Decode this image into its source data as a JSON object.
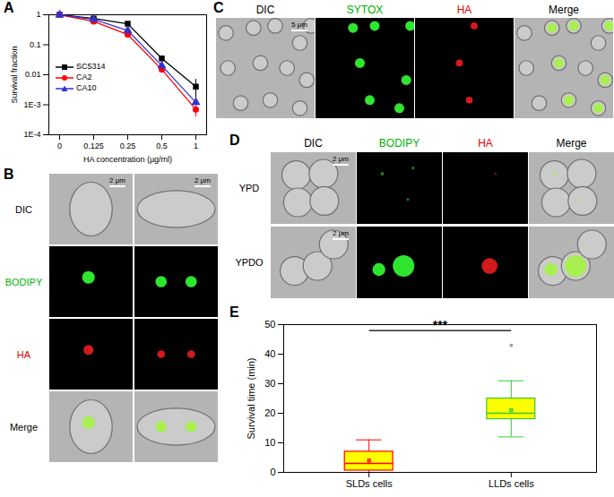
{
  "chart_data": [
    {
      "panel": "A",
      "type": "line",
      "xlabel": "HA concentration (μg/ml)",
      "ylabel": "Survival fraction",
      "categories": [
        "0",
        "0.125",
        "0.25",
        "0.5",
        "1"
      ],
      "series": [
        {
          "name": "SC5314",
          "color": "#000000",
          "marker": "square",
          "values": [
            1,
            0.75,
            0.5,
            0.035,
            0.004
          ],
          "errors": [
            0,
            0,
            0,
            0,
            0.003
          ]
        },
        {
          "name": "CA2",
          "color": "#ff0000",
          "marker": "circle",
          "values": [
            1,
            0.6,
            0.22,
            0.015,
            0.0007
          ],
          "errors": [
            0,
            0,
            0,
            0,
            0.0003
          ]
        },
        {
          "name": "CA10",
          "color": "#3333cc",
          "marker": "triangle",
          "values": [
            1,
            0.7,
            0.3,
            0.02,
            0.0012
          ],
          "errors": [
            0,
            0,
            0,
            0,
            0.0004
          ]
        }
      ],
      "log": "y",
      "ylim": [
        0.0001,
        1
      ],
      "yticks": [
        1,
        0.1,
        0.01,
        {
          "value": 0.001,
          "label": "1E-3"
        },
        {
          "value": 0.0001,
          "label": "1E-4"
        }
      ],
      "legend": "left",
      "grid": false
    },
    {
      "panel": "E",
      "type": "box",
      "ylabel": "Survival time (min)",
      "categories": [
        "SLDs cells",
        "LLDs cells"
      ],
      "min": [
        0,
        12
      ],
      "q1": [
        0.6,
        18
      ],
      "median": [
        3,
        20
      ],
      "q3": [
        7,
        25
      ],
      "max": [
        11,
        31
      ],
      "mean": [
        4,
        21
      ],
      "outliers": [
        [],
        [
          43
        ]
      ],
      "color": "#ffff00",
      "colors": [
        "#ff0000",
        "#33cc33"
      ],
      "ylim": [
        0,
        50
      ],
      "yticks": [
        0,
        10,
        20,
        30,
        40,
        50
      ],
      "annotations": [
        {
          "text": "***",
          "from": "SLDs cells",
          "to": "LLDs cells",
          "y": 48
        }
      ]
    }
  ],
  "panels": [
    {
      "label": "B",
      "row_labels": [
        {
          "text": "DIC",
          "color": "#000000"
        },
        {
          "text": "BODIPY",
          "color": "#00b000"
        },
        {
          "text": "HA",
          "color": "#e00000"
        },
        {
          "text": "Merge",
          "color": "#000000"
        }
      ],
      "scale_bars": [
        "2 μm",
        "2 μm"
      ]
    },
    {
      "label": "C",
      "column_labels": [
        {
          "text": "DIC",
          "color": "#000000"
        },
        {
          "text": "SYTOX",
          "color": "#00b000"
        },
        {
          "text": "HA",
          "color": "#e00000"
        },
        {
          "text": "Merge",
          "color": "#000000"
        }
      ],
      "scale_bars": [
        "5 μm"
      ]
    },
    {
      "label": "D",
      "column_labels": [
        {
          "text": "DIC",
          "color": "#000000"
        },
        {
          "text": "BODIPY",
          "color": "#00b000"
        },
        {
          "text": "HA",
          "color": "#e00000"
        },
        {
          "text": "Merge",
          "color": "#000000"
        }
      ],
      "row_labels": [
        {
          "text": "YPD",
          "color": "#000000"
        },
        {
          "text": "YPDO",
          "color": "#000000"
        }
      ],
      "scale_bars": [
        "2 μm",
        "2 μm"
      ]
    }
  ]
}
